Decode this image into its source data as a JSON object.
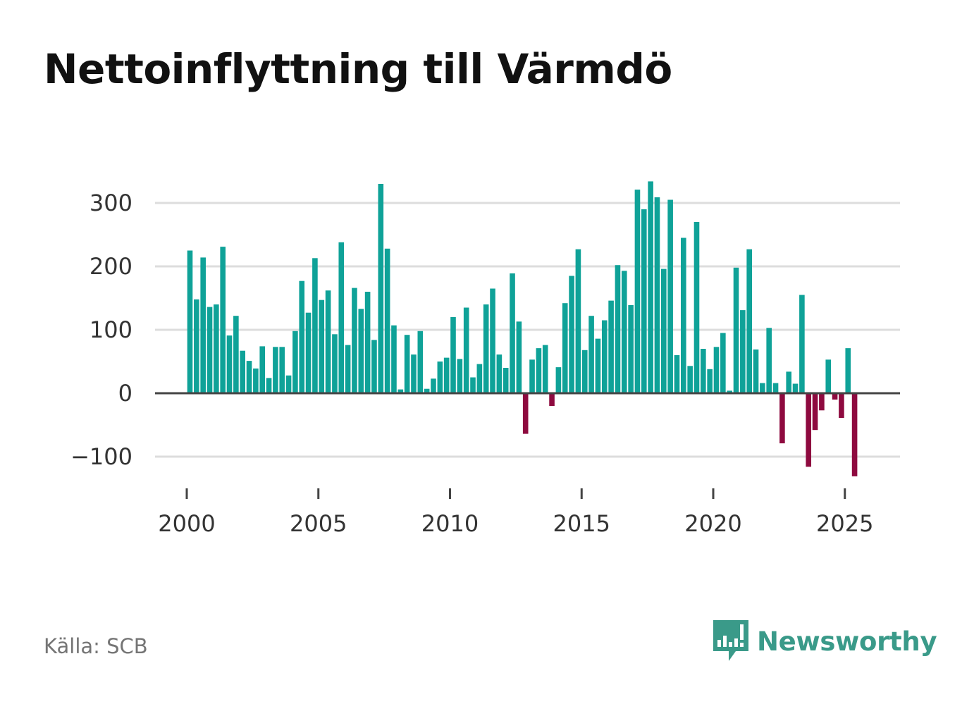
{
  "title": "Nettoinflyttning till Värmdö",
  "source": "Källa: SCB",
  "brand": {
    "name": "Newsworthy",
    "icon": "newsworthy-logo-icon",
    "color": "#3a9a89"
  },
  "colors": {
    "positive": "#0fa298",
    "negative": "#8e0a3f",
    "grid": "#dddddd",
    "zero_line": "#444444"
  },
  "chart_data": {
    "type": "bar",
    "title": "Nettoinflyttning till Värmdö",
    "xlabel": "",
    "ylabel": "",
    "ylim": [
      -130,
      340
    ],
    "xlim": [
      1999.95,
      2026.9
    ],
    "yticks": [
      -100,
      0,
      100,
      200,
      300
    ],
    "ytick_labels": [
      "−100",
      "0",
      "100",
      "200",
      "300"
    ],
    "xticks": [
      2000,
      2005,
      2010,
      2015,
      2020,
      2025
    ],
    "xtick_labels": [
      "2000",
      "2005",
      "2010",
      "2015",
      "2020",
      "2025"
    ],
    "grid": true,
    "frequency": "quarterly",
    "start_year": 2000,
    "values": [
      225,
      148,
      214,
      136,
      140,
      231,
      91,
      122,
      67,
      51,
      39,
      74,
      24,
      73,
      73,
      28,
      98,
      177,
      127,
      213,
      147,
      162,
      93,
      238,
      76,
      166,
      133,
      160,
      84,
      330,
      228,
      107,
      6,
      92,
      61,
      98,
      7,
      23,
      50,
      56,
      120,
      54,
      135,
      25,
      46,
      140,
      165,
      61,
      40,
      189,
      113,
      -64,
      53,
      71,
      76,
      -20,
      41,
      142,
      185,
      227,
      68,
      122,
      86,
      115,
      146,
      202,
      193,
      139,
      321,
      290,
      334,
      309,
      196,
      305,
      60,
      245,
      43,
      270,
      70,
      38,
      73,
      95,
      4,
      198,
      131,
      227,
      69,
      16,
      103,
      16,
      -79,
      34,
      15,
      155,
      -116,
      -58,
      -27,
      53,
      -10,
      -39,
      71,
      -131
    ]
  }
}
